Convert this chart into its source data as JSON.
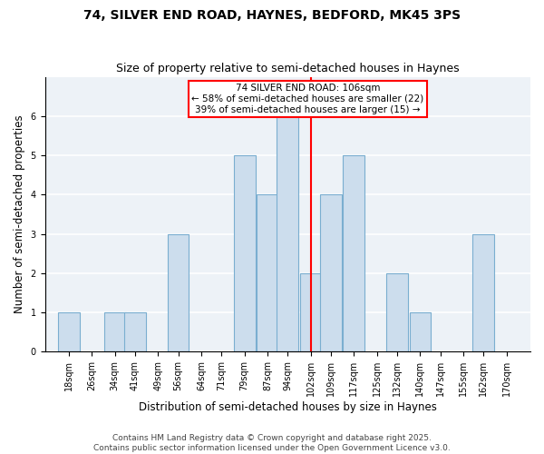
{
  "title1": "74, SILVER END ROAD, HAYNES, BEDFORD, MK45 3PS",
  "title2": "Size of property relative to semi-detached houses in Haynes",
  "xlabel": "Distribution of semi-detached houses by size in Haynes",
  "ylabel": "Number of semi-detached properties",
  "bins": [
    18,
    26,
    34,
    41,
    49,
    56,
    64,
    71,
    79,
    87,
    94,
    102,
    109,
    117,
    125,
    132,
    140,
    147,
    155,
    162,
    170
  ],
  "counts": [
    1,
    0,
    1,
    1,
    0,
    3,
    0,
    0,
    5,
    4,
    6,
    2,
    4,
    5,
    0,
    2,
    1,
    0,
    0,
    3,
    0
  ],
  "bar_color": "#ccdded",
  "bar_edge_color": "#7aaed0",
  "red_line_x": 102,
  "annotation_text": "74 SILVER END ROAD: 106sqm\n← 58% of semi-detached houses are smaller (22)\n39% of semi-detached houses are larger (15) →",
  "annotation_box_color": "white",
  "annotation_border_color": "red",
  "footer_text": "Contains HM Land Registry data © Crown copyright and database right 2025.\nContains public sector information licensed under the Open Government Licence v3.0.",
  "ylim": [
    0,
    7
  ],
  "yticks": [
    0,
    1,
    2,
    3,
    4,
    5,
    6
  ],
  "bg_color": "#edf2f7",
  "grid_color": "white",
  "title1_fontsize": 10,
  "title2_fontsize": 9,
  "xlabel_fontsize": 8.5,
  "ylabel_fontsize": 8.5,
  "footer_fontsize": 6.5,
  "tick_fontsize": 7,
  "annot_fontsize": 7.5
}
